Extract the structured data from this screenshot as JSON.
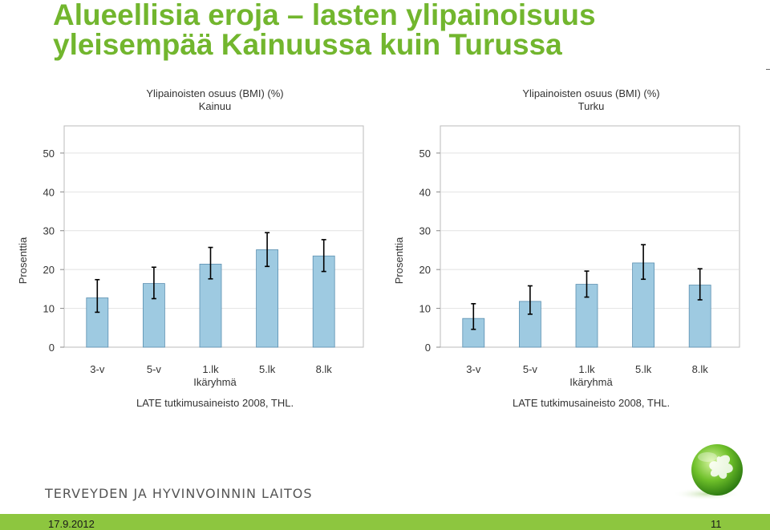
{
  "slide": {
    "title_line1": "Alueellisia eroja – lasten ylipainoisuus",
    "title_line2": "yleisempää Kainuussa kuin Turussa",
    "organization": "TERVEYDEN JA HYVINVOINNIN LAITOS",
    "date": "17.9.2012",
    "page_number": "11"
  },
  "colors": {
    "title": "#72b62e",
    "bar_fill": "#9ecae1",
    "bar_stroke": "#5b8fb0",
    "footer": "#8dc63f"
  },
  "chart_data": [
    {
      "type": "bar",
      "title": "Ylipainoisten osuus (BMI) (%)",
      "subtitle": "Kainuu",
      "xlabel": "Ikäryhmä",
      "ylabel": "Prosenttia",
      "source": "LATE tutkimusaineisto 2008, THL.",
      "categories": [
        "3-v",
        "5-v",
        "1.lk",
        "5.lk",
        "8.lk"
      ],
      "values": [
        12.7,
        16.4,
        21.4,
        25.1,
        23.5
      ],
      "error_low": [
        9.0,
        12.5,
        17.6,
        20.8,
        19.5
      ],
      "error_high": [
        17.4,
        20.6,
        25.7,
        29.5,
        27.7
      ],
      "ylim": [
        0,
        57
      ],
      "yticks": [
        0,
        10,
        20,
        30,
        40,
        50
      ],
      "grid": true
    },
    {
      "type": "bar",
      "title": "Ylipainoisten osuus (BMI) (%)",
      "subtitle": "Turku",
      "xlabel": "Ikäryhmä",
      "ylabel": "Prosenttia",
      "source": "LATE tutkimusaineisto 2008, THL.",
      "categories": [
        "3-v",
        "5-v",
        "1.lk",
        "5.lk",
        "8.lk"
      ],
      "values": [
        7.4,
        11.8,
        16.2,
        21.7,
        16.0
      ],
      "error_low": [
        4.6,
        8.5,
        12.9,
        17.5,
        12.2
      ],
      "error_high": [
        11.2,
        15.8,
        19.6,
        26.4,
        20.2
      ],
      "ylim": [
        0,
        57
      ],
      "yticks": [
        0,
        10,
        20,
        30,
        40,
        50
      ],
      "grid": true
    }
  ]
}
